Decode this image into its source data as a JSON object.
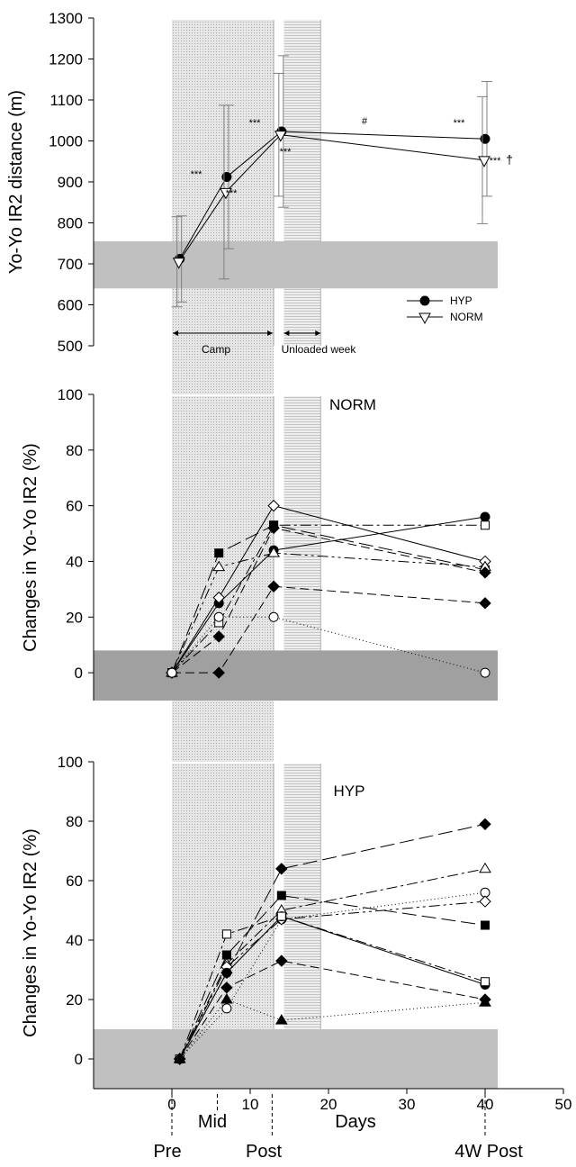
{
  "colors": {
    "band": "#c0c0c0",
    "band_dark": "#a0a0a0",
    "shade": "#d8d8d8",
    "line": "#000000",
    "err": "#808080"
  },
  "x_axis": {
    "label": "Days",
    "ticks": [
      0,
      10,
      20,
      30,
      40,
      50
    ],
    "range": [
      -10,
      50
    ],
    "timepoints": [
      {
        "label": "Pre",
        "day": 0
      },
      {
        "label": "Mid",
        "day": 6
      },
      {
        "label": "Post",
        "day": 13
      },
      {
        "label": "4W Post",
        "day": 40
      }
    ]
  },
  "annotations": {
    "camp": "Camp",
    "unloaded": "Unloaded week",
    "sig_marks": [
      "***",
      "***",
      "***",
      "***",
      "***",
      "#",
      "***",
      "***",
      "†"
    ]
  },
  "chart_data": [
    {
      "type": "line",
      "ylabel": "Yo-Yo IR2 distance (m)",
      "ylim": [
        500,
        1300
      ],
      "yticks": [
        500,
        600,
        700,
        800,
        900,
        1000,
        1100,
        1200,
        1300
      ],
      "band": [
        640,
        755
      ],
      "x": [
        1,
        7,
        14,
        40
      ],
      "series": [
        {
          "name": "HYP",
          "marker": "filled-circle",
          "values": [
            712,
            912,
            1023,
            1005
          ],
          "err": [
            105,
            175,
            185,
            140
          ]
        },
        {
          "name": "NORM",
          "marker": "open-triangle-down",
          "values": [
            705,
            875,
            1015,
            953
          ],
          "err": [
            110,
            212,
            150,
            155
          ]
        }
      ]
    },
    {
      "type": "line",
      "title": "NORM",
      "ylabel": "Changes in Yo-Yo IR2 (%)",
      "ylim": [
        -10,
        100
      ],
      "yticks": [
        0,
        20,
        40,
        60,
        80,
        100
      ],
      "band": [
        -10,
        8
      ],
      "x": [
        0,
        6,
        13,
        40
      ],
      "series": [
        {
          "marker": "filled-circle",
          "dash": "solid",
          "values": [
            0,
            25,
            44,
            56
          ]
        },
        {
          "marker": "open-diamond",
          "dash": "solid",
          "values": [
            0,
            27,
            60,
            40
          ]
        },
        {
          "marker": "open-square",
          "dash": "dashdot",
          "values": [
            0,
            18,
            53,
            53
          ]
        },
        {
          "marker": "filled-square",
          "dash": "longdash",
          "values": [
            0,
            43,
            53,
            37
          ]
        },
        {
          "marker": "open-triangle",
          "dash": "dashdotdot",
          "values": [
            0,
            38,
            43,
            38
          ]
        },
        {
          "marker": "filled-diamond",
          "dash": "dash",
          "values": [
            0,
            0,
            31,
            25
          ]
        },
        {
          "marker": "filled-diamond",
          "dash": "dash",
          "values": [
            0,
            13,
            52,
            36
          ]
        },
        {
          "marker": "open-circle",
          "dash": "dotted",
          "values": [
            0,
            20,
            20,
            0
          ]
        }
      ]
    },
    {
      "type": "line",
      "title": "HYP",
      "ylabel": "Changes in Yo-Yo IR2 (%)",
      "ylim": [
        -10,
        100
      ],
      "yticks": [
        0,
        20,
        40,
        60,
        80,
        100
      ],
      "band": [
        -10,
        10
      ],
      "x": [
        1,
        7,
        14,
        40
      ],
      "series": [
        {
          "marker": "filled-diamond",
          "dash": "longdash",
          "values": [
            0,
            29,
            64,
            79
          ]
        },
        {
          "marker": "open-triangle",
          "dash": "dashdot",
          "values": [
            0,
            32,
            50,
            64
          ]
        },
        {
          "marker": "open-circle",
          "dash": "dotted",
          "values": [
            0,
            17,
            47,
            56
          ]
        },
        {
          "marker": "open-diamond",
          "dash": "dashdotdot",
          "values": [
            0,
            31,
            47,
            53
          ]
        },
        {
          "marker": "filled-square",
          "dash": "longdash",
          "values": [
            0,
            35,
            55,
            45
          ]
        },
        {
          "marker": "filled-circle",
          "dash": "solid",
          "values": [
            0,
            29,
            48,
            25
          ]
        },
        {
          "marker": "open-square",
          "dash": "dashdot",
          "values": [
            0,
            42,
            48,
            26
          ]
        },
        {
          "marker": "filled-diamond",
          "dash": "dash",
          "values": [
            0,
            24,
            33,
            20
          ]
        },
        {
          "marker": "filled-triangle",
          "dash": "dotted",
          "values": [
            0,
            20,
            13,
            19
          ]
        }
      ]
    }
  ],
  "legend": [
    {
      "label": "HYP",
      "marker": "filled-circle"
    },
    {
      "label": "NORM",
      "marker": "open-triangle-down"
    }
  ]
}
